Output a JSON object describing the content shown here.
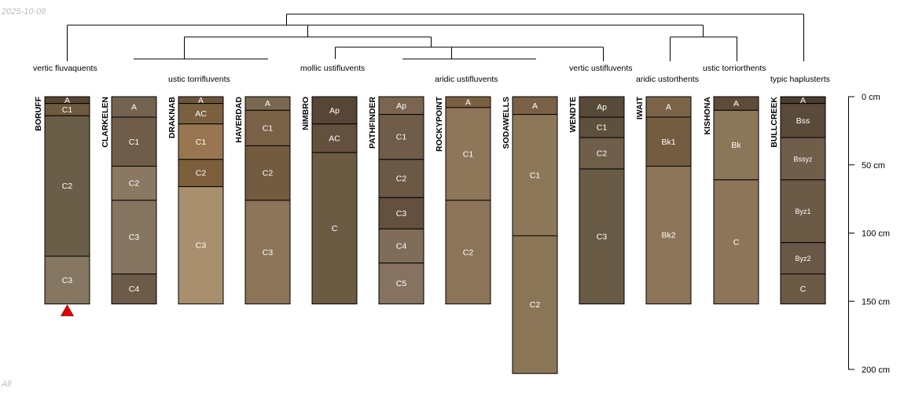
{
  "header": {
    "date": "2025-10-08"
  },
  "footer": {
    "label": "All"
  },
  "taxonomy_labels": [
    "vertic fluvaquents",
    "ustic torrifluvents",
    "mollic ustifluvents",
    "aridic ustifluvents",
    "vertic ustifluvents",
    "aridic ustorthents",
    "ustic torriorthents",
    "typic haplusterts"
  ],
  "depth_axis": {
    "unit": "cm",
    "ticks": [
      0,
      50,
      100,
      150,
      200
    ]
  },
  "profiles": [
    {
      "name": "BORUFF",
      "marker": true,
      "horizons": [
        {
          "name": "A",
          "top": 0,
          "bottom": 5,
          "color": "#574634"
        },
        {
          "name": "C1",
          "top": 5,
          "bottom": 14,
          "color": "#6e5a3e"
        },
        {
          "name": "C2",
          "top": 14,
          "bottom": 117,
          "color": "#6a5e48"
        },
        {
          "name": "C3",
          "top": 117,
          "bottom": 152,
          "color": "#857762"
        }
      ]
    },
    {
      "name": "CLARKELEN",
      "marker": false,
      "horizons": [
        {
          "name": "A",
          "top": 0,
          "bottom": 15,
          "color": "#73624f"
        },
        {
          "name": "C1",
          "top": 15,
          "bottom": 51,
          "color": "#6f5d4a"
        },
        {
          "name": "C2",
          "top": 51,
          "bottom": 76,
          "color": "#8b7862"
        },
        {
          "name": "C3",
          "top": 76,
          "bottom": 130,
          "color": "#857560"
        },
        {
          "name": "C4",
          "top": 130,
          "bottom": 152,
          "color": "#6b5b48"
        }
      ]
    },
    {
      "name": "DRAKNAB",
      "marker": false,
      "horizons": [
        {
          "name": "A",
          "top": 0,
          "bottom": 5,
          "color": "#6b5539"
        },
        {
          "name": "AC",
          "top": 5,
          "bottom": 20,
          "color": "#7a603f"
        },
        {
          "name": "C1",
          "top": 20,
          "bottom": 46,
          "color": "#977651"
        },
        {
          "name": "C2",
          "top": 46,
          "bottom": 66,
          "color": "#7d5e3c"
        },
        {
          "name": "C3",
          "top": 66,
          "bottom": 152,
          "color": "#a88f6d"
        }
      ]
    },
    {
      "name": "HAVERDAD",
      "marker": false,
      "horizons": [
        {
          "name": "A",
          "top": 0,
          "bottom": 10,
          "color": "#7a6750"
        },
        {
          "name": "C1",
          "top": 10,
          "bottom": 36,
          "color": "#7a6145"
        },
        {
          "name": "C2",
          "top": 36,
          "bottom": 76,
          "color": "#735b40"
        },
        {
          "name": "C3",
          "top": 76,
          "bottom": 152,
          "color": "#8c7458"
        }
      ]
    },
    {
      "name": "NIMBRO",
      "marker": false,
      "horizons": [
        {
          "name": "Ap",
          "top": 0,
          "bottom": 20,
          "color": "#574636"
        },
        {
          "name": "AC",
          "top": 20,
          "bottom": 41,
          "color": "#63503d"
        },
        {
          "name": "C",
          "top": 41,
          "bottom": 152,
          "color": "#6b5b43"
        }
      ]
    },
    {
      "name": "PATHFINDER",
      "marker": false,
      "horizons": [
        {
          "name": "Ap",
          "top": 0,
          "bottom": 13,
          "color": "#7a6650"
        },
        {
          "name": "C1",
          "top": 13,
          "bottom": 46,
          "color": "#6f5c49"
        },
        {
          "name": "C2",
          "top": 46,
          "bottom": 74,
          "color": "#6b5845"
        },
        {
          "name": "C3",
          "top": 74,
          "bottom": 97,
          "color": "#63503f"
        },
        {
          "name": "C4",
          "top": 97,
          "bottom": 122,
          "color": "#7f6d59"
        },
        {
          "name": "C5",
          "top": 122,
          "bottom": 152,
          "color": "#857260"
        }
      ]
    },
    {
      "name": "ROCKYPOINT",
      "marker": false,
      "horizons": [
        {
          "name": "A",
          "top": 0,
          "bottom": 8,
          "color": "#7a5f41"
        },
        {
          "name": "C1",
          "top": 8,
          "bottom": 76,
          "color": "#8e7659"
        },
        {
          "name": "C2",
          "top": 76,
          "bottom": 152,
          "color": "#8c7458"
        }
      ]
    },
    {
      "name": "SODAWELLS",
      "marker": false,
      "horizons": [
        {
          "name": "A",
          "top": 0,
          "bottom": 13,
          "color": "#7a6145"
        },
        {
          "name": "C1",
          "top": 13,
          "bottom": 102,
          "color": "#8c7858"
        },
        {
          "name": "C2",
          "top": 102,
          "bottom": 203,
          "color": "#8a7656"
        }
      ]
    },
    {
      "name": "WENDTE",
      "marker": false,
      "horizons": [
        {
          "name": "Ap",
          "top": 0,
          "bottom": 15,
          "color": "#574a38"
        },
        {
          "name": "C1",
          "top": 15,
          "bottom": 30,
          "color": "#5e503c"
        },
        {
          "name": "C2",
          "top": 30,
          "bottom": 53,
          "color": "#6e5e4a"
        },
        {
          "name": "C3",
          "top": 53,
          "bottom": 152,
          "color": "#685a45"
        }
      ]
    },
    {
      "name": "IWAIT",
      "marker": false,
      "horizons": [
        {
          "name": "A",
          "top": 0,
          "bottom": 15,
          "color": "#7a6347"
        },
        {
          "name": "Bk1",
          "top": 15,
          "bottom": 51,
          "color": "#735c40"
        },
        {
          "name": "Bk2",
          "top": 51,
          "bottom": 152,
          "color": "#8c7558"
        }
      ]
    },
    {
      "name": "KISHONA",
      "marker": false,
      "horizons": [
        {
          "name": "A",
          "top": 0,
          "bottom": 10,
          "color": "#5e4c38"
        },
        {
          "name": "Bk",
          "top": 10,
          "bottom": 61,
          "color": "#8a7658"
        },
        {
          "name": "C",
          "top": 61,
          "bottom": 152,
          "color": "#8c7559"
        }
      ]
    },
    {
      "name": "BULLCREEK",
      "marker": false,
      "horizons": [
        {
          "name": "A",
          "top": 0,
          "bottom": 5,
          "color": "#4a3c2e"
        },
        {
          "name": "Bss",
          "top": 5,
          "bottom": 30,
          "color": "#5a4a3a"
        },
        {
          "name": "Bssyz",
          "top": 30,
          "bottom": 61,
          "color": "#6e5e4a"
        },
        {
          "name": "Byz1",
          "top": 61,
          "bottom": 107,
          "color": "#6a5a46"
        },
        {
          "name": "Byz2",
          "top": 107,
          "bottom": 130,
          "color": "#685845"
        },
        {
          "name": "C",
          "top": 130,
          "bottom": 152,
          "color": "#6b5a46"
        }
      ]
    }
  ]
}
